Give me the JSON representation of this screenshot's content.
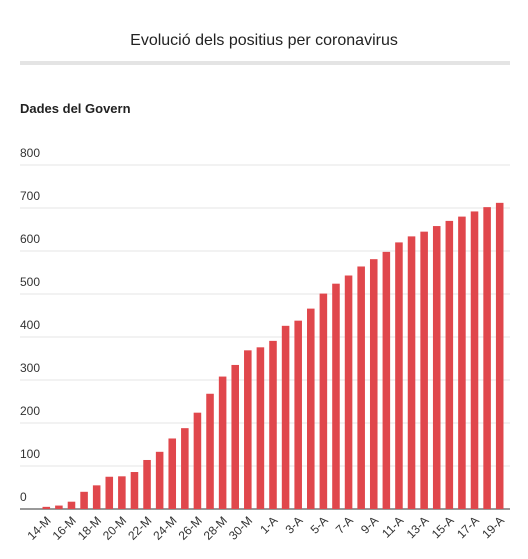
{
  "chart_data": {
    "type": "bar",
    "title": "Evolució dels positius per coronavirus",
    "subtitle": "Dades del Govern",
    "categories": [
      "14-M",
      null,
      "16-M",
      null,
      "18-M",
      null,
      "20-M",
      null,
      "22-M",
      null,
      "24-M",
      null,
      "26-M",
      null,
      "28-M",
      null,
      "30-M",
      null,
      "1-A",
      null,
      "3-A",
      null,
      "5-A",
      null,
      "7-A",
      null,
      "9-A",
      null,
      "11-A",
      null,
      "13-A",
      null,
      "15-A",
      null,
      "17-A",
      null,
      "19-A"
    ],
    "values": [
      5,
      8,
      17,
      40,
      55,
      75,
      76,
      86,
      114,
      133,
      164,
      188,
      224,
      268,
      308,
      335,
      369,
      376,
      391,
      426,
      438,
      466,
      501,
      524,
      543,
      564,
      581,
      598,
      620,
      634,
      645,
      658,
      670,
      680,
      692,
      702,
      712
    ],
    "color": "#e0474c",
    "ylim": [
      0,
      800
    ],
    "yticks": [
      0,
      100,
      200,
      300,
      400,
      500,
      600,
      700,
      800
    ],
    "grid": true
  }
}
